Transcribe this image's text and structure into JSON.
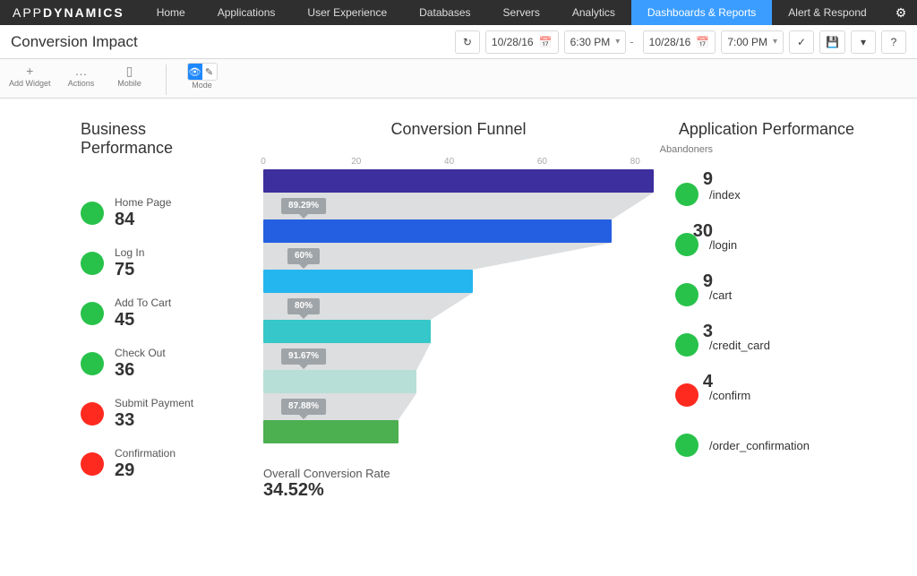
{
  "brand": {
    "prefix": "APP",
    "suffix": "DYNAMICS"
  },
  "nav": {
    "items": [
      "Home",
      "Applications",
      "User Experience",
      "Databases",
      "Servers",
      "Analytics",
      "Dashboards & Reports",
      "Alert & Respond"
    ],
    "active_index": 6
  },
  "page_title": "Conversion Impact",
  "date_range": {
    "from_date": "10/28/16",
    "from_time": "6:30 PM",
    "to_date": "10/28/16",
    "to_time": "7:00 PM"
  },
  "toolbar": {
    "add_widget": "Add Widget",
    "actions": "Actions",
    "mobile": "Mobile",
    "mode": "Mode"
  },
  "sections": {
    "business_title": "Business Performance",
    "funnel_title": "Conversion Funnel",
    "app_title": "Application Performance",
    "abandoners_label": "Abandoners"
  },
  "colors": {
    "health_ok": "#28c24a",
    "health_bad": "#ff2a1f",
    "connector_fill": "#dcdedf",
    "badge_bg": "#9fa4a8"
  },
  "funnel": {
    "type": "funnel-bar",
    "axis_max": 84,
    "axis_ticks": [
      0,
      20,
      40,
      60,
      80
    ],
    "stages": [
      {
        "label": "Home Page",
        "count": 84,
        "bar_color": "#3d2f9d",
        "health": "ok",
        "abandoners": 9
      },
      {
        "label": "Log In",
        "count": 75,
        "bar_color": "#235fe0",
        "health": "ok",
        "abandoners": 30,
        "rate_from_prev": "89.29%"
      },
      {
        "label": "Add To Cart",
        "count": 45,
        "bar_color": "#24b6ef",
        "health": "ok",
        "abandoners": 9,
        "rate_from_prev": "60%"
      },
      {
        "label": "Check Out",
        "count": 36,
        "bar_color": "#35c7c9",
        "health": "ok",
        "abandoners": 3,
        "rate_from_prev": "80%"
      },
      {
        "label": "Submit Payment",
        "count": 33,
        "bar_color": "#b7dfd7",
        "health": "bad",
        "abandoners": 4,
        "rate_from_prev": "91.67%"
      },
      {
        "label": "Confirmation",
        "count": 29,
        "bar_color": "#4caf50",
        "health": "bad",
        "rate_from_prev": "87.88%"
      }
    ],
    "overall_label": "Overall Conversion Rate",
    "overall_value": "34.52%"
  },
  "app_perf": [
    {
      "path": "/index",
      "health": "ok"
    },
    {
      "path": "/login",
      "health": "ok"
    },
    {
      "path": "/cart",
      "health": "ok"
    },
    {
      "path": "/credit_card",
      "health": "ok"
    },
    {
      "path": "/confirm",
      "health": "bad"
    },
    {
      "path": "/order_confirmation",
      "health": "ok"
    }
  ]
}
